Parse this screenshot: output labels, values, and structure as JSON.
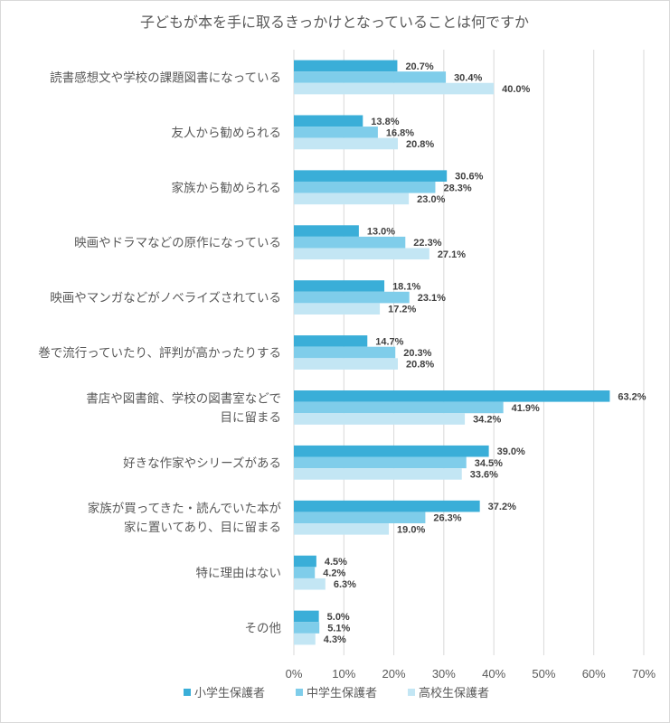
{
  "chart_data": {
    "type": "bar",
    "orientation": "horizontal",
    "title": "子どもが本を手に取るきっかけとなっていることは何ですか",
    "categories": [
      [
        "読書感想文や学校の課題図書になっている"
      ],
      [
        "友人から勧められる"
      ],
      [
        "家族から勧められる"
      ],
      [
        "映画やドラマなどの原作になっている"
      ],
      [
        "映画やマンガなどがノベライズされている"
      ],
      [
        "巻で流行っていたり、評判が高かったりする"
      ],
      [
        "書店や図書館、学校の図書室などで",
        "目に留まる"
      ],
      [
        "好きな作家やシリーズがある"
      ],
      [
        "家族が買ってきた・読んでいた本が",
        "家に置いてあり、目に留まる"
      ],
      [
        "特に理由はない"
      ],
      [
        "その他"
      ]
    ],
    "series": [
      {
        "name": "小学生保護者",
        "color": "#3aaed8",
        "values": [
          20.7,
          13.8,
          30.6,
          13.0,
          18.1,
          14.7,
          63.2,
          39.0,
          37.2,
          4.5,
          5.0
        ]
      },
      {
        "name": "中学生保護者",
        "color": "#7fcdea",
        "values": [
          30.4,
          16.8,
          28.3,
          22.3,
          23.1,
          20.3,
          41.9,
          34.5,
          26.3,
          4.2,
          5.1
        ]
      },
      {
        "name": "高校生保護者",
        "color": "#c3e6f4",
        "values": [
          40.0,
          20.8,
          23.0,
          27.1,
          17.2,
          20.8,
          34.2,
          33.6,
          19.0,
          6.3,
          4.3
        ]
      }
    ],
    "xlim": [
      0,
      70
    ],
    "xticks": [
      "0%",
      "10%",
      "20%",
      "30%",
      "40%",
      "50%",
      "60%",
      "70%"
    ],
    "value_suffix": "%",
    "grid": true,
    "legend_position": "bottom"
  }
}
